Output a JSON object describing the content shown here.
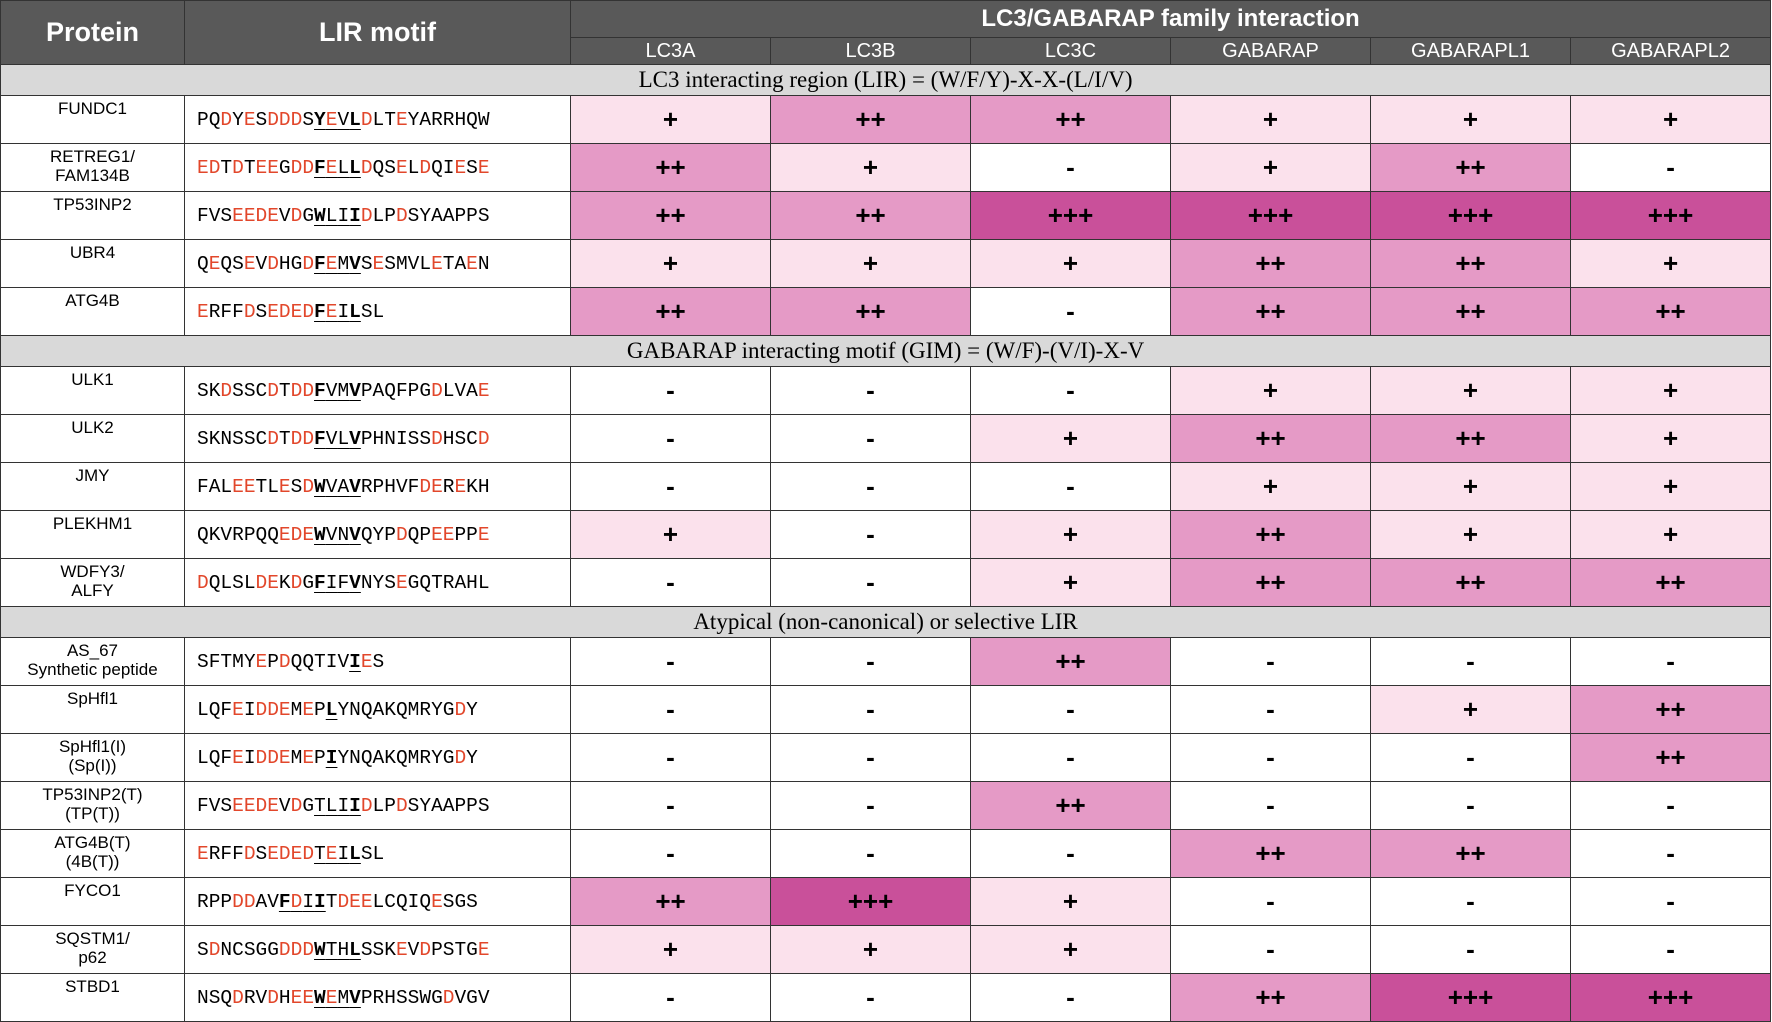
{
  "header": {
    "protein": "Protein",
    "motif": "LIR motif",
    "family": "LC3/GABARAP family interaction",
    "columns": [
      "LC3A",
      "LC3B",
      "LC3C",
      "GABARAP",
      "GABARAPL1",
      "GABARAPL2"
    ]
  },
  "sections": [
    {
      "title": "LC3 interacting region (LIR) = (W/F/Y)-X-X-(L/I/V)",
      "rows": [
        {
          "protein": [
            "FUNDC1"
          ],
          "motif": {
            "before": "PQDYESDDDS",
            "core": "YEVL",
            "after": "DLTEYARRHQW"
          },
          "levels": [
            "+",
            "++",
            "++",
            "+",
            "+",
            "+"
          ]
        },
        {
          "protein": [
            "RETREG1/",
            "FAM134B"
          ],
          "motif": {
            "before": "EDTDTEEGDD",
            "core": "FELL",
            "after": "DQSELDQIESE"
          },
          "levels": [
            "++",
            "+",
            "-",
            "+",
            "++",
            "-"
          ]
        },
        {
          "protein": [
            "TP53INP2"
          ],
          "motif": {
            "before": "FVSEEDEVDG",
            "core": "WLII",
            "after": "DLPDSYAAPPS"
          },
          "levels": [
            "++",
            "++",
            "+++",
            "+++",
            "+++",
            "+++"
          ]
        },
        {
          "protein": [
            "UBR4"
          ],
          "motif": {
            "before": "QEQSEVDHGD",
            "core": "FEMV",
            "after": "SESMVLETAEN"
          },
          "levels": [
            "+",
            "+",
            "+",
            "++",
            "++",
            "+"
          ]
        },
        {
          "protein": [
            "ATG4B"
          ],
          "motif": {
            "before": "ERFFDSEDED",
            "core": "FEIL",
            "after": "SL"
          },
          "levels": [
            "++",
            "++",
            "-",
            "++",
            "++",
            "++"
          ]
        }
      ]
    },
    {
      "title": "GABARAP interacting motif (GIM) = (W/F)-(V/I)-X-V",
      "rows": [
        {
          "protein": [
            "ULK1"
          ],
          "motif": {
            "before": "SKDSSCDTDD",
            "core": "FVMV",
            "after": "PAQFPGDLVAE"
          },
          "levels": [
            "-",
            "-",
            "-",
            "+",
            "+",
            "+"
          ]
        },
        {
          "protein": [
            "ULK2"
          ],
          "motif": {
            "before": "SKNSSCDTDD",
            "core": "FVLV",
            "after": "PHNISSDHSCD"
          },
          "levels": [
            "-",
            "-",
            "+",
            "++",
            "++",
            "+"
          ]
        },
        {
          "protein": [
            "JMY"
          ],
          "motif": {
            "before": "FALEETLESD",
            "core": "WVAV",
            "after": "RPHVFDEREKH"
          },
          "levels": [
            "-",
            "-",
            "-",
            "+",
            "+",
            "+"
          ]
        },
        {
          "protein": [
            "PLEKHM1"
          ],
          "motif": {
            "before": "QKVRPQQEDE",
            "core": "WVNV",
            "after": "QYPDQPEEPPE"
          },
          "levels": [
            "+",
            "-",
            "+",
            "++",
            "+",
            "+"
          ]
        },
        {
          "protein": [
            "WDFY3/",
            "ALFY"
          ],
          "motif": {
            "before": "DQLSLDEKDG",
            "core": "FIFV",
            "after": "NYSEGQTRAHL"
          },
          "levels": [
            "-",
            "-",
            "+",
            "++",
            "++",
            "++"
          ]
        }
      ]
    },
    {
      "title": "Atypical (non-canonical) or selective LIR",
      "rows": [
        {
          "protein": [
            "AS_67",
            "Synthetic peptide"
          ],
          "motif": {
            "before": "SFTMYEPDQQTIV",
            "core": "I",
            "after": "ES"
          },
          "levels": [
            "-",
            "-",
            "++",
            "-",
            "-",
            "-"
          ]
        },
        {
          "protein": [
            "SpHfl1"
          ],
          "motif": {
            "before": "LQFEIDDEMEP",
            "core": "L",
            "after": "YNQAKQMRYGDY"
          },
          "levels": [
            "-",
            "-",
            "-",
            "-",
            "+",
            "++"
          ]
        },
        {
          "protein": [
            "SpHfl1(I)",
            "(Sp(I))"
          ],
          "motif": {
            "before": "LQFEIDDEMEP",
            "core": "I",
            "after": "YNQAKQMRYGDY"
          },
          "levels": [
            "-",
            "-",
            "-",
            "-",
            "-",
            "++"
          ]
        },
        {
          "protein": [
            "TP53INP2(T)",
            "(TP(T))"
          ],
          "motif": {
            "before": "FVSEEDEVDG",
            "core": "TLII",
            "after": "DLPDSYAAPPS"
          },
          "levels": [
            "-",
            "-",
            "++",
            "-",
            "-",
            "-"
          ]
        },
        {
          "protein": [
            "ATG4B(T)",
            "(4B(T))"
          ],
          "motif": {
            "before": "ERFFDSEDED",
            "core": "TEIL",
            "after": "SL"
          },
          "levels": [
            "-",
            "-",
            "-",
            "++",
            "++",
            "-"
          ]
        },
        {
          "protein": [
            "FYCO1"
          ],
          "motif": {
            "before": "RPPDDAV",
            "core": "FDII",
            "after": "TDEELCQIQESGS"
          },
          "levels": [
            "++",
            "+++",
            "+",
            "-",
            "-",
            "-"
          ]
        },
        {
          "protein": [
            "SQSTM1/",
            "p62"
          ],
          "motif": {
            "before": "SDNCSGGDDD",
            "core": "WTHL",
            "after": "SSKEVDPSTGE"
          },
          "levels": [
            "+",
            "+",
            "+",
            "-",
            "-",
            "-"
          ]
        },
        {
          "protein": [
            "STBD1"
          ],
          "motif": {
            "before": "NSQDRVDHEE",
            "core": "WEMV",
            "after": "PRHSSWGDVGV"
          },
          "levels": [
            "-",
            "-",
            "-",
            "++",
            "+++",
            "+++"
          ]
        }
      ]
    }
  ]
}
